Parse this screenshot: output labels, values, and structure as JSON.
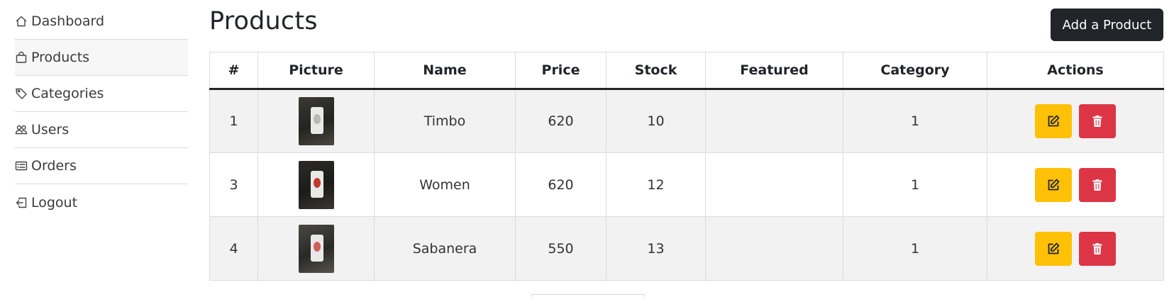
{
  "sidebar": {
    "items": [
      {
        "label": "Dashboard",
        "icon": "house-icon"
      },
      {
        "label": "Products",
        "icon": "bag-icon"
      },
      {
        "label": "Categories",
        "icon": "tag-icon"
      },
      {
        "label": "Users",
        "icon": "people-icon"
      },
      {
        "label": "Orders",
        "icon": "card-list-icon"
      },
      {
        "label": "Logout",
        "icon": "box-arrow-in-left-icon"
      }
    ]
  },
  "header": {
    "title": "Products",
    "add_label": "Add a Product"
  },
  "table": {
    "columns": [
      "#",
      "Picture",
      "Name",
      "Price",
      "Stock",
      "Featured",
      "Category",
      "Actions"
    ],
    "rows": [
      {
        "id": "1",
        "name": "Timbo",
        "price": "620",
        "stock": "10",
        "featured": "",
        "category": "1"
      },
      {
        "id": "3",
        "name": "Women",
        "price": "620",
        "stock": "12",
        "featured": "",
        "category": "1"
      },
      {
        "id": "4",
        "name": "Sabanera",
        "price": "550",
        "stock": "13",
        "featured": "",
        "category": "1"
      }
    ]
  },
  "colors": {
    "dark": "#212529",
    "edit": "#ffc107",
    "delete": "#dc3545",
    "stripe": "#f2f2f2"
  }
}
